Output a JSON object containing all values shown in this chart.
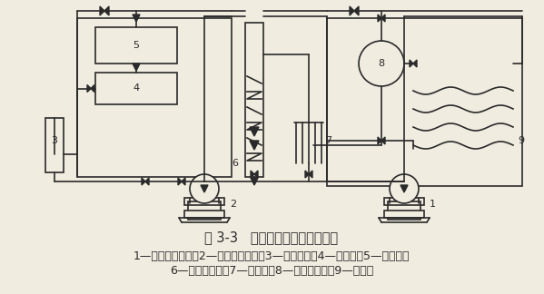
{
  "title": "图 3-3   双级压缩制冷系统原理图",
  "caption_line1": "1—低压级压缩机；2—高压级压缩机；3—油分离器；4—贮液器；5—冷凝器；",
  "caption_line2": "6—中间冷却器；7—分配站；8—氨液分离器；9—蒸发器",
  "bg_color": "#f0ece0",
  "line_color": "#2a2a2a",
  "title_fontsize": 10.5,
  "caption_fontsize": 9.0
}
